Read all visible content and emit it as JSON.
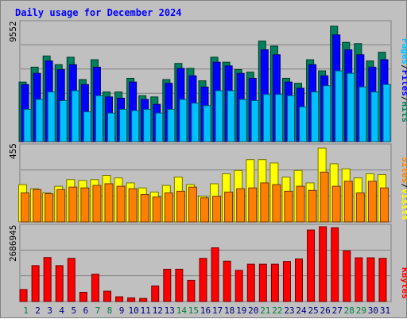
{
  "title": "Daily usage for December 2024",
  "days": [
    "1",
    "2",
    "3",
    "4",
    "5",
    "6",
    "7",
    "8",
    "9",
    "10",
    "11",
    "12",
    "13",
    "14",
    "15",
    "16",
    "17",
    "18",
    "19",
    "20",
    "21",
    "22",
    "23",
    "24",
    "25",
    "26",
    "27",
    "28",
    "29",
    "30",
    "31"
  ],
  "weekend_days": [
    "1",
    "7",
    "8",
    "14",
    "15",
    "21",
    "22",
    "28",
    "29"
  ],
  "colors": {
    "hits": "#00805c",
    "files": "#0000ff",
    "pages": "#00c0ff",
    "visits": "#ffff00",
    "sites": "#ff8000",
    "kbytes": "#ff0000",
    "title": "#0000ff",
    "weekday_label": "#000080",
    "weekend_label": "#008040"
  },
  "panels": {
    "top": {
      "max_label": "9552",
      "legend": {
        "pages": "Pages",
        "files": "Files",
        "hits": "Hits",
        "sep": "/"
      }
    },
    "mid": {
      "max_label": "455",
      "legend": {
        "sites": "Sites",
        "visits": "Visits",
        "sep": "/"
      }
    },
    "bot": {
      "max_label": "2686945",
      "legend": {
        "kbytes": "KBytes"
      }
    }
  },
  "chart_data": [
    {
      "type": "bar",
      "categories": [
        "1",
        "2",
        "3",
        "4",
        "5",
        "6",
        "7",
        "8",
        "9",
        "10",
        "11",
        "12",
        "13",
        "14",
        "15",
        "16",
        "17",
        "18",
        "19",
        "20",
        "21",
        "22",
        "23",
        "24",
        "25",
        "26",
        "27",
        "28",
        "29",
        "30",
        "31"
      ],
      "ylim": [
        0,
        9552
      ],
      "series": [
        {
          "name": "Hits",
          "values": [
            4800,
            6000,
            6900,
            6200,
            6800,
            5000,
            6600,
            4000,
            4000,
            5100,
            3700,
            3600,
            5000,
            6300,
            5900,
            4900,
            6800,
            6400,
            5800,
            5600,
            8100,
            7700,
            5100,
            4700,
            6600,
            5700,
            9300,
            8000,
            7900,
            6500,
            7200
          ]
        },
        {
          "name": "Files",
          "values": [
            4600,
            5500,
            6500,
            5800,
            6200,
            4600,
            6000,
            3600,
            3500,
            4800,
            3400,
            3000,
            4700,
            5900,
            5300,
            4400,
            6400,
            6100,
            5500,
            5100,
            7400,
            7000,
            4800,
            4300,
            6200,
            5300,
            8600,
            7400,
            7000,
            6000,
            6600
          ]
        },
        {
          "name": "Pages",
          "values": [
            2600,
            3400,
            4000,
            3300,
            4100,
            2400,
            3700,
            2300,
            2600,
            2500,
            2600,
            2300,
            2600,
            3400,
            3100,
            2900,
            4100,
            4100,
            3400,
            3300,
            3800,
            3800,
            3700,
            2800,
            4000,
            4500,
            5700,
            5500,
            4400,
            4000,
            4600
          ]
        }
      ]
    },
    {
      "type": "bar",
      "categories": [
        "1",
        "2",
        "3",
        "4",
        "5",
        "6",
        "7",
        "8",
        "9",
        "10",
        "11",
        "12",
        "13",
        "14",
        "15",
        "16",
        "17",
        "18",
        "19",
        "20",
        "21",
        "22",
        "23",
        "24",
        "25",
        "26",
        "27",
        "28",
        "29",
        "30",
        "31"
      ],
      "ylim": [
        0,
        455
      ],
      "series": [
        {
          "name": "Visits",
          "values": [
            225,
            200,
            175,
            215,
            255,
            250,
            255,
            280,
            265,
            235,
            205,
            180,
            220,
            270,
            225,
            155,
            230,
            290,
            310,
            375,
            375,
            355,
            270,
            310,
            235,
            445,
            350,
            320,
            265,
            290,
            285
          ]
        },
        {
          "name": "Sites",
          "values": [
            175,
            195,
            170,
            195,
            210,
            205,
            220,
            230,
            215,
            200,
            165,
            150,
            175,
            185,
            210,
            145,
            155,
            180,
            200,
            205,
            235,
            225,
            185,
            215,
            190,
            300,
            215,
            245,
            175,
            245,
            205
          ]
        }
      ]
    },
    {
      "type": "bar",
      "categories": [
        "1",
        "2",
        "3",
        "4",
        "5",
        "6",
        "7",
        "8",
        "9",
        "10",
        "11",
        "12",
        "13",
        "14",
        "15",
        "16",
        "17",
        "18",
        "19",
        "20",
        "21",
        "22",
        "23",
        "24",
        "25",
        "26",
        "27",
        "28",
        "29",
        "30",
        "31"
      ],
      "ylim": [
        0,
        2686945
      ],
      "series": [
        {
          "name": "KBytes",
          "values": [
            430000,
            1290000,
            1580000,
            1290000,
            1550000,
            330000,
            980000,
            370000,
            170000,
            130000,
            110000,
            560000,
            1160000,
            1160000,
            760000,
            1550000,
            1930000,
            1450000,
            1120000,
            1340000,
            1340000,
            1340000,
            1440000,
            1530000,
            2570000,
            2740000,
            2650000,
            1820000,
            1570000,
            1570000,
            1550000
          ]
        }
      ]
    }
  ]
}
